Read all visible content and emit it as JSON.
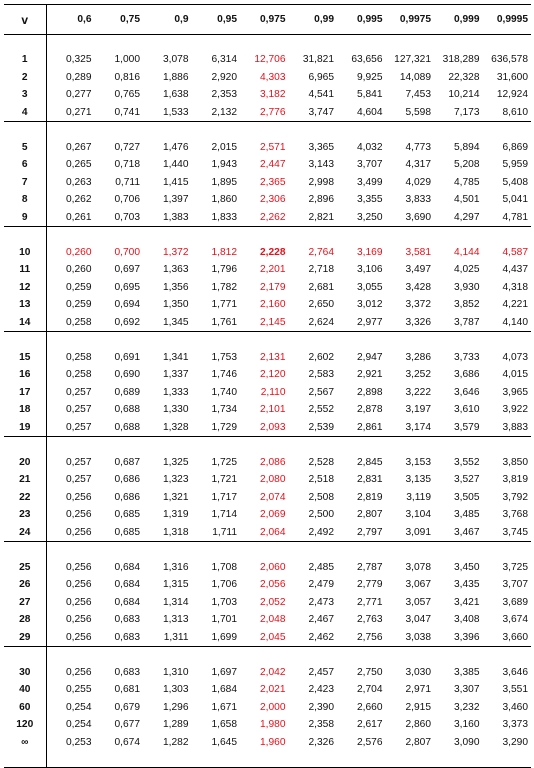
{
  "header": {
    "v_label": "v",
    "columns": [
      "0,6",
      "0,75",
      "0,9",
      "0,95",
      "0,975",
      "0,99",
      "0,995",
      "0,9975",
      "0,999",
      "0,9995"
    ]
  },
  "colors": {
    "text": "#111111",
    "highlight": "#e8101a",
    "rule": "#000000"
  },
  "groups": [
    [
      {
        "v": "1",
        "values": [
          "0,325",
          "1,000",
          "3,078",
          "6,314",
          "12,706",
          "31,821",
          "63,656",
          "127,321",
          "318,289",
          "636,578"
        ]
      },
      {
        "v": "2",
        "values": [
          "0,289",
          "0,816",
          "1,886",
          "2,920",
          "4,303",
          "6,965",
          "9,925",
          "14,089",
          "22,328",
          "31,600"
        ]
      },
      {
        "v": "3",
        "values": [
          "0,277",
          "0,765",
          "1,638",
          "2,353",
          "3,182",
          "4,541",
          "5,841",
          "7,453",
          "10,214",
          "12,924"
        ]
      },
      {
        "v": "4",
        "values": [
          "0,271",
          "0,741",
          "1,533",
          "2,132",
          "2,776",
          "3,747",
          "4,604",
          "5,598",
          "7,173",
          "8,610"
        ]
      }
    ],
    [
      {
        "v": "5",
        "values": [
          "0,267",
          "0,727",
          "1,476",
          "2,015",
          "2,571",
          "3,365",
          "4,032",
          "4,773",
          "5,894",
          "6,869"
        ]
      },
      {
        "v": "6",
        "values": [
          "0,265",
          "0,718",
          "1,440",
          "1,943",
          "2,447",
          "3,143",
          "3,707",
          "4,317",
          "5,208",
          "5,959"
        ]
      },
      {
        "v": "7",
        "values": [
          "0,263",
          "0,711",
          "1,415",
          "1,895",
          "2,365",
          "2,998",
          "3,499",
          "4,029",
          "4,785",
          "5,408"
        ]
      },
      {
        "v": "8",
        "values": [
          "0,262",
          "0,706",
          "1,397",
          "1,860",
          "2,306",
          "2,896",
          "3,355",
          "3,833",
          "4,501",
          "5,041"
        ]
      },
      {
        "v": "9",
        "values": [
          "0,261",
          "0,703",
          "1,383",
          "1,833",
          "2,262",
          "2,821",
          "3,250",
          "3,690",
          "4,297",
          "4,781"
        ]
      }
    ],
    [
      {
        "v": "10",
        "highlight": true,
        "values": [
          "0,260",
          "0,700",
          "1,372",
          "1,812",
          "2,228",
          "2,764",
          "3,169",
          "3,581",
          "4,144",
          "4,587"
        ]
      },
      {
        "v": "11",
        "values": [
          "0,260",
          "0,697",
          "1,363",
          "1,796",
          "2,201",
          "2,718",
          "3,106",
          "3,497",
          "4,025",
          "4,437"
        ]
      },
      {
        "v": "12",
        "values": [
          "0,259",
          "0,695",
          "1,356",
          "1,782",
          "2,179",
          "2,681",
          "3,055",
          "3,428",
          "3,930",
          "4,318"
        ]
      },
      {
        "v": "13",
        "values": [
          "0,259",
          "0,694",
          "1,350",
          "1,771",
          "2,160",
          "2,650",
          "3,012",
          "3,372",
          "3,852",
          "4,221"
        ]
      },
      {
        "v": "14",
        "values": [
          "0,258",
          "0,692",
          "1,345",
          "1,761",
          "2,145",
          "2,624",
          "2,977",
          "3,326",
          "3,787",
          "4,140"
        ]
      }
    ],
    [
      {
        "v": "15",
        "values": [
          "0,258",
          "0,691",
          "1,341",
          "1,753",
          "2,131",
          "2,602",
          "2,947",
          "3,286",
          "3,733",
          "4,073"
        ]
      },
      {
        "v": "16",
        "values": [
          "0,258",
          "0,690",
          "1,337",
          "1,746",
          "2,120",
          "2,583",
          "2,921",
          "3,252",
          "3,686",
          "4,015"
        ]
      },
      {
        "v": "17",
        "values": [
          "0,257",
          "0,689",
          "1,333",
          "1,740",
          "2,110",
          "2,567",
          "2,898",
          "3,222",
          "3,646",
          "3,965"
        ]
      },
      {
        "v": "18",
        "values": [
          "0,257",
          "0,688",
          "1,330",
          "1,734",
          "2,101",
          "2,552",
          "2,878",
          "3,197",
          "3,610",
          "3,922"
        ]
      },
      {
        "v": "19",
        "values": [
          "0,257",
          "0,688",
          "1,328",
          "1,729",
          "2,093",
          "2,539",
          "2,861",
          "3,174",
          "3,579",
          "3,883"
        ]
      }
    ],
    [
      {
        "v": "20",
        "values": [
          "0,257",
          "0,687",
          "1,325",
          "1,725",
          "2,086",
          "2,528",
          "2,845",
          "3,153",
          "3,552",
          "3,850"
        ]
      },
      {
        "v": "21",
        "values": [
          "0,257",
          "0,686",
          "1,323",
          "1,721",
          "2,080",
          "2,518",
          "2,831",
          "3,135",
          "3,527",
          "3,819"
        ]
      },
      {
        "v": "22",
        "values": [
          "0,256",
          "0,686",
          "1,321",
          "1,717",
          "2,074",
          "2,508",
          "2,819",
          "3,119",
          "3,505",
          "3,792"
        ]
      },
      {
        "v": "23",
        "values": [
          "0,256",
          "0,685",
          "1,319",
          "1,714",
          "2,069",
          "2,500",
          "2,807",
          "3,104",
          "3,485",
          "3,768"
        ]
      },
      {
        "v": "24",
        "values": [
          "0,256",
          "0,685",
          "1,318",
          "1,711",
          "2,064",
          "2,492",
          "2,797",
          "3,091",
          "3,467",
          "3,745"
        ]
      }
    ],
    [
      {
        "v": "25",
        "values": [
          "0,256",
          "0,684",
          "1,316",
          "1,708",
          "2,060",
          "2,485",
          "2,787",
          "3,078",
          "3,450",
          "3,725"
        ]
      },
      {
        "v": "26",
        "values": [
          "0,256",
          "0,684",
          "1,315",
          "1,706",
          "2,056",
          "2,479",
          "2,779",
          "3,067",
          "3,435",
          "3,707"
        ]
      },
      {
        "v": "27",
        "values": [
          "0,256",
          "0,684",
          "1,314",
          "1,703",
          "2,052",
          "2,473",
          "2,771",
          "3,057",
          "3,421",
          "3,689"
        ]
      },
      {
        "v": "28",
        "values": [
          "0,256",
          "0,683",
          "1,313",
          "1,701",
          "2,048",
          "2,467",
          "2,763",
          "3,047",
          "3,408",
          "3,674"
        ]
      },
      {
        "v": "29",
        "values": [
          "0,256",
          "0,683",
          "1,311",
          "1,699",
          "2,045",
          "2,462",
          "2,756",
          "3,038",
          "3,396",
          "3,660"
        ]
      }
    ],
    [
      {
        "v": "30",
        "values": [
          "0,256",
          "0,683",
          "1,310",
          "1,697",
          "2,042",
          "2,457",
          "2,750",
          "3,030",
          "3,385",
          "3,646"
        ]
      },
      {
        "v": "40",
        "values": [
          "0,255",
          "0,681",
          "1,303",
          "1,684",
          "2,021",
          "2,423",
          "2,704",
          "2,971",
          "3,307",
          "3,551"
        ]
      },
      {
        "v": "60",
        "values": [
          "0,254",
          "0,679",
          "1,296",
          "1,671",
          "2,000",
          "2,390",
          "2,660",
          "2,915",
          "3,232",
          "3,460"
        ]
      },
      {
        "v": "120",
        "values": [
          "0,254",
          "0,677",
          "1,289",
          "1,658",
          "1,980",
          "2,358",
          "2,617",
          "2,860",
          "3,160",
          "3,373"
        ]
      },
      {
        "v": "∞",
        "values": [
          "0,253",
          "0,674",
          "1,282",
          "1,645",
          "1,960",
          "2,326",
          "2,576",
          "2,807",
          "3,090",
          "3,290"
        ]
      }
    ]
  ]
}
